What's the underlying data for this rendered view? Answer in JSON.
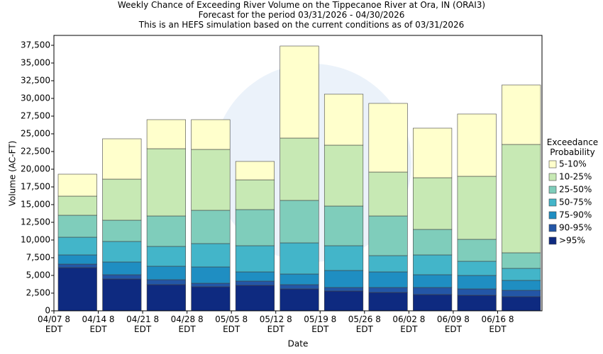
{
  "chart_data": {
    "type": "stacked_bar",
    "title_lines": [
      "Weekly Chance of Exceeding River Volume on the Tippecanoe River at Ora, IN (ORAI3)",
      "Forecast for the period 03/31/2026 - 04/30/2026",
      "This is an HEFS simulation based on the current conditions as of 03/31/2026"
    ],
    "x_label": "Date",
    "y_label": "Volume (AC-FT)",
    "legend_title": "Exceedance Probability",
    "legend_position": "right",
    "grid": false,
    "categories": [
      "04/07 8 EDT",
      "04/14 8 EDT",
      "04/21 8 EDT",
      "04/28 8 EDT",
      "05/05 8 EDT",
      "05/12 8 EDT",
      "05/19 8 EDT",
      "05/26 8 EDT",
      "06/02 8 EDT",
      "06/09 8 EDT",
      "06/16 8 EDT"
    ],
    "ylim": [
      0,
      38900
    ],
    "yticks": [
      0,
      {
        "value": 2500,
        "label": "2,500"
      },
      {
        "value": 5000,
        "label": "5,000"
      },
      {
        "value": 7500,
        "label": "7,500"
      },
      {
        "value": 10000,
        "label": "10,000"
      },
      {
        "value": 12500,
        "label": "12,500"
      },
      {
        "value": 15000,
        "label": "15,000"
      },
      {
        "value": 17500,
        "label": "17,500"
      },
      {
        "value": 20000,
        "label": "20,000"
      },
      {
        "value": 22500,
        "label": "22,500"
      },
      {
        "value": 25000,
        "label": "25,000"
      },
      {
        "value": 27500,
        "label": "27,500"
      },
      {
        "value": 30000,
        "label": "30,000"
      },
      {
        "value": 32500,
        "label": "32,500"
      },
      {
        "value": 35000,
        "label": "35,000"
      },
      {
        "value": 37500,
        "label": "37,500"
      }
    ],
    "series": [
      {
        "name": ">95%",
        "color": "#0e2a80",
        "values": [
          6100,
          4500,
          3700,
          3400,
          3600,
          3100,
          2800,
          2600,
          2300,
          2200,
          2000
        ]
      },
      {
        "name": "90-95%",
        "color": "#2356a6",
        "values": [
          500,
          600,
          700,
          500,
          600,
          600,
          500,
          700,
          1000,
          900,
          900
        ]
      },
      {
        "name": "75-90%",
        "color": "#1f8ec2",
        "values": [
          1300,
          1800,
          1900,
          2300,
          1300,
          1500,
          2400,
          2200,
          1800,
          1900,
          1400
        ]
      },
      {
        "name": "50-75%",
        "color": "#43b5c9",
        "values": [
          2500,
          2900,
          2800,
          3300,
          3700,
          4400,
          3500,
          2300,
          2800,
          2000,
          1700
        ]
      },
      {
        "name": "25-50%",
        "color": "#7fcdbb",
        "values": [
          3100,
          3000,
          4300,
          4700,
          5100,
          6000,
          5600,
          5600,
          3600,
          3100,
          2200
        ]
      },
      {
        "name": "10-25%",
        "color": "#c7e9b4",
        "values": [
          2700,
          5800,
          9500,
          8600,
          4200,
          8800,
          8600,
          6200,
          7300,
          8900,
          15300
        ]
      },
      {
        "name": "5-10%",
        "color": "#ffffcc",
        "values": [
          3100,
          5700,
          4100,
          4200,
          2600,
          13000,
          7200,
          9700,
          7000,
          8800,
          8400
        ]
      }
    ]
  }
}
